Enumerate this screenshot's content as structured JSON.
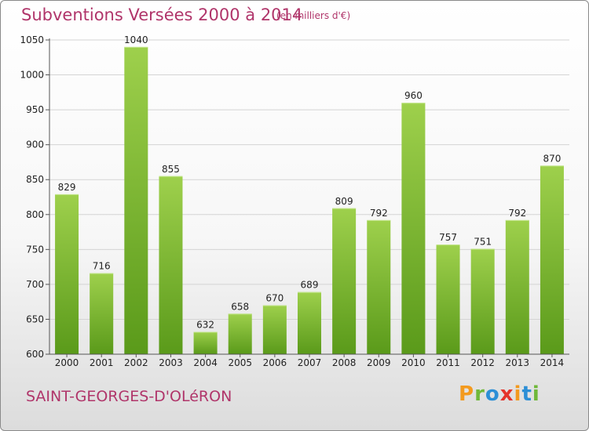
{
  "header": {
    "title": "Subventions Versées 2000 à 2014",
    "subtitle": "(en milliers d'€)"
  },
  "footer": {
    "commune": "SAINT-GEORGES-D'OLéRON",
    "logo": "Proxiti",
    "logo_letters": [
      "P",
      "r",
      "o",
      "x",
      "i",
      "t",
      "i"
    ],
    "logo_colors": [
      "#f39a1e",
      "#6fb83a",
      "#2c8fd6",
      "#e5332a",
      "#f39a1e",
      "#2c8fd6",
      "#6fb83a"
    ]
  },
  "chart_data": {
    "type": "bar",
    "title": "Subventions Versées 2000 à 2014",
    "subtitle": "(en milliers d'€)",
    "categories": [
      "2000",
      "2001",
      "2002",
      "2003",
      "2004",
      "2005",
      "2006",
      "2007",
      "2008",
      "2009",
      "2010",
      "2011",
      "2012",
      "2013",
      "2014"
    ],
    "values": [
      829,
      716,
      1040,
      855,
      632,
      658,
      670,
      689,
      809,
      792,
      960,
      757,
      751,
      792,
      870
    ],
    "ylim": [
      600,
      1050
    ],
    "yticks": [
      600,
      650,
      700,
      750,
      800,
      850,
      900,
      950,
      1000,
      1050
    ],
    "grid": true,
    "bar_color_top": "#9ed04c",
    "bar_color_bottom": "#5a9a1a"
  }
}
